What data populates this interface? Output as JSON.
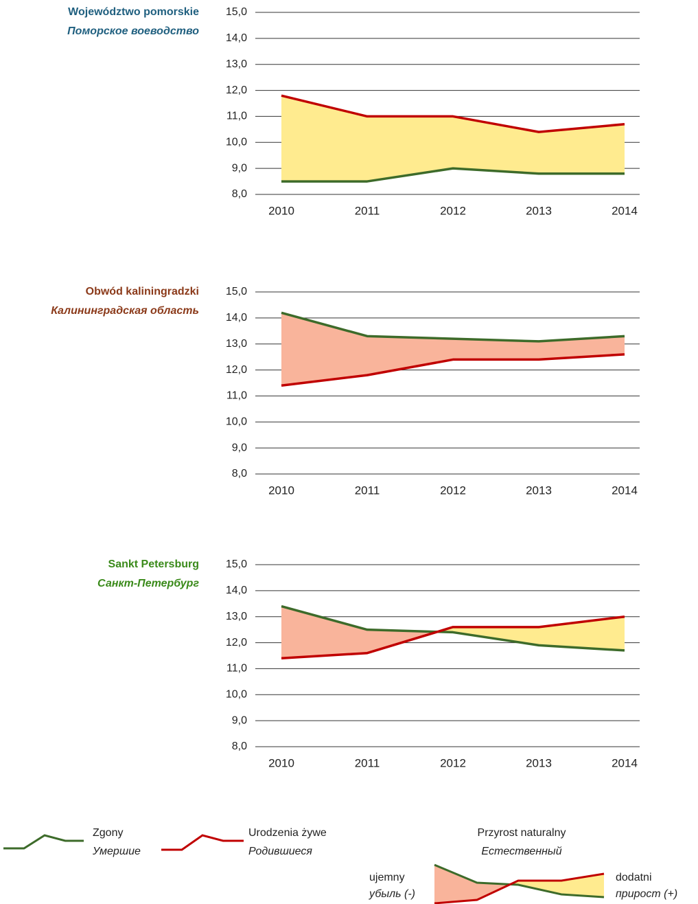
{
  "chart_data": [
    {
      "type": "line",
      "title": "Województwo pomorskie",
      "subtitle": "Поморское воеводство",
      "title_color": "#1f5f7f",
      "categories": [
        "2010",
        "2011",
        "2012",
        "2013",
        "2014"
      ],
      "series": [
        {
          "color": "#3d6b2a",
          "values": [
            8.5,
            8.5,
            9.0,
            8.8,
            8.8
          ]
        },
        {
          "color": "#c00000",
          "values": [
            11.8,
            11.0,
            11.0,
            10.4,
            10.7
          ]
        }
      ],
      "fill_colors": [
        "#ffeb8f",
        "#f9b49b"
      ],
      "ylim": [
        8,
        15
      ],
      "yticks": [
        {
          "value": 8,
          "label": "8,0"
        },
        {
          "value": 9,
          "label": "9,0"
        },
        {
          "value": 10,
          "label": "10,0"
        },
        {
          "value": 11,
          "label": "11,0"
        },
        {
          "value": 12,
          "label": "12,0"
        },
        {
          "value": 13,
          "label": "13,0"
        },
        {
          "value": 14,
          "label": "14,0"
        },
        {
          "value": 15,
          "label": "15,0"
        }
      ],
      "grid": true
    },
    {
      "type": "line",
      "title": "Obwód kaliningradzki",
      "subtitle": "Калининградская область",
      "title_color": "#8b3a1a",
      "categories": [
        "2010",
        "2011",
        "2012",
        "2013",
        "2014"
      ],
      "series": [
        {
          "color": "#3d6b2a",
          "values": [
            14.2,
            13.3,
            13.2,
            13.1,
            13.3
          ]
        },
        {
          "color": "#c00000",
          "values": [
            11.4,
            11.8,
            12.4,
            12.4,
            12.6
          ]
        }
      ],
      "fill_colors": [
        "#ffeb8f",
        "#f9b49b"
      ],
      "ylim": [
        8,
        15
      ],
      "yticks": [
        {
          "value": 8,
          "label": "8,0"
        },
        {
          "value": 9,
          "label": "9,0"
        },
        {
          "value": 10,
          "label": "10,0"
        },
        {
          "value": 11,
          "label": "11,0"
        },
        {
          "value": 12,
          "label": "12,0"
        },
        {
          "value": 13,
          "label": "13,0"
        },
        {
          "value": 14,
          "label": "14,0"
        },
        {
          "value": 15,
          "label": "15,0"
        }
      ],
      "grid": true
    },
    {
      "type": "line",
      "title": "Sankt Petersburg",
      "subtitle": "Санкт-Петербург",
      "title_color": "#3a8a1a",
      "categories": [
        "2010",
        "2011",
        "2012",
        "2013",
        "2014"
      ],
      "series": [
        {
          "color": "#3d6b2a",
          "values": [
            13.4,
            12.5,
            12.4,
            11.9,
            11.7
          ]
        },
        {
          "color": "#c00000",
          "values": [
            11.4,
            11.6,
            12.6,
            12.6,
            13.0
          ]
        }
      ],
      "fill_colors": [
        "#ffeb8f",
        "#f9b49b"
      ],
      "ylim": [
        8,
        15
      ],
      "yticks": [
        {
          "value": 8,
          "label": "8,0"
        },
        {
          "value": 9,
          "label": "9,0"
        },
        {
          "value": 10,
          "label": "10,0"
        },
        {
          "value": 11,
          "label": "11,0"
        },
        {
          "value": 12,
          "label": "12,0"
        },
        {
          "value": 13,
          "label": "13,0"
        },
        {
          "value": 14,
          "label": "14,0"
        },
        {
          "value": 15,
          "label": "15,0"
        }
      ],
      "grid": true
    }
  ],
  "legend": {
    "deaths": [
      "Zgony",
      "Умершие"
    ],
    "births": [
      "Urodzenia żywe",
      "Родившиеся"
    ],
    "increase": [
      "Przyrost naturalny",
      "Естественный"
    ],
    "negative": [
      "ujemny",
      "убыль (-)"
    ],
    "positive": [
      "dodatni",
      "прирост (+)"
    ]
  }
}
